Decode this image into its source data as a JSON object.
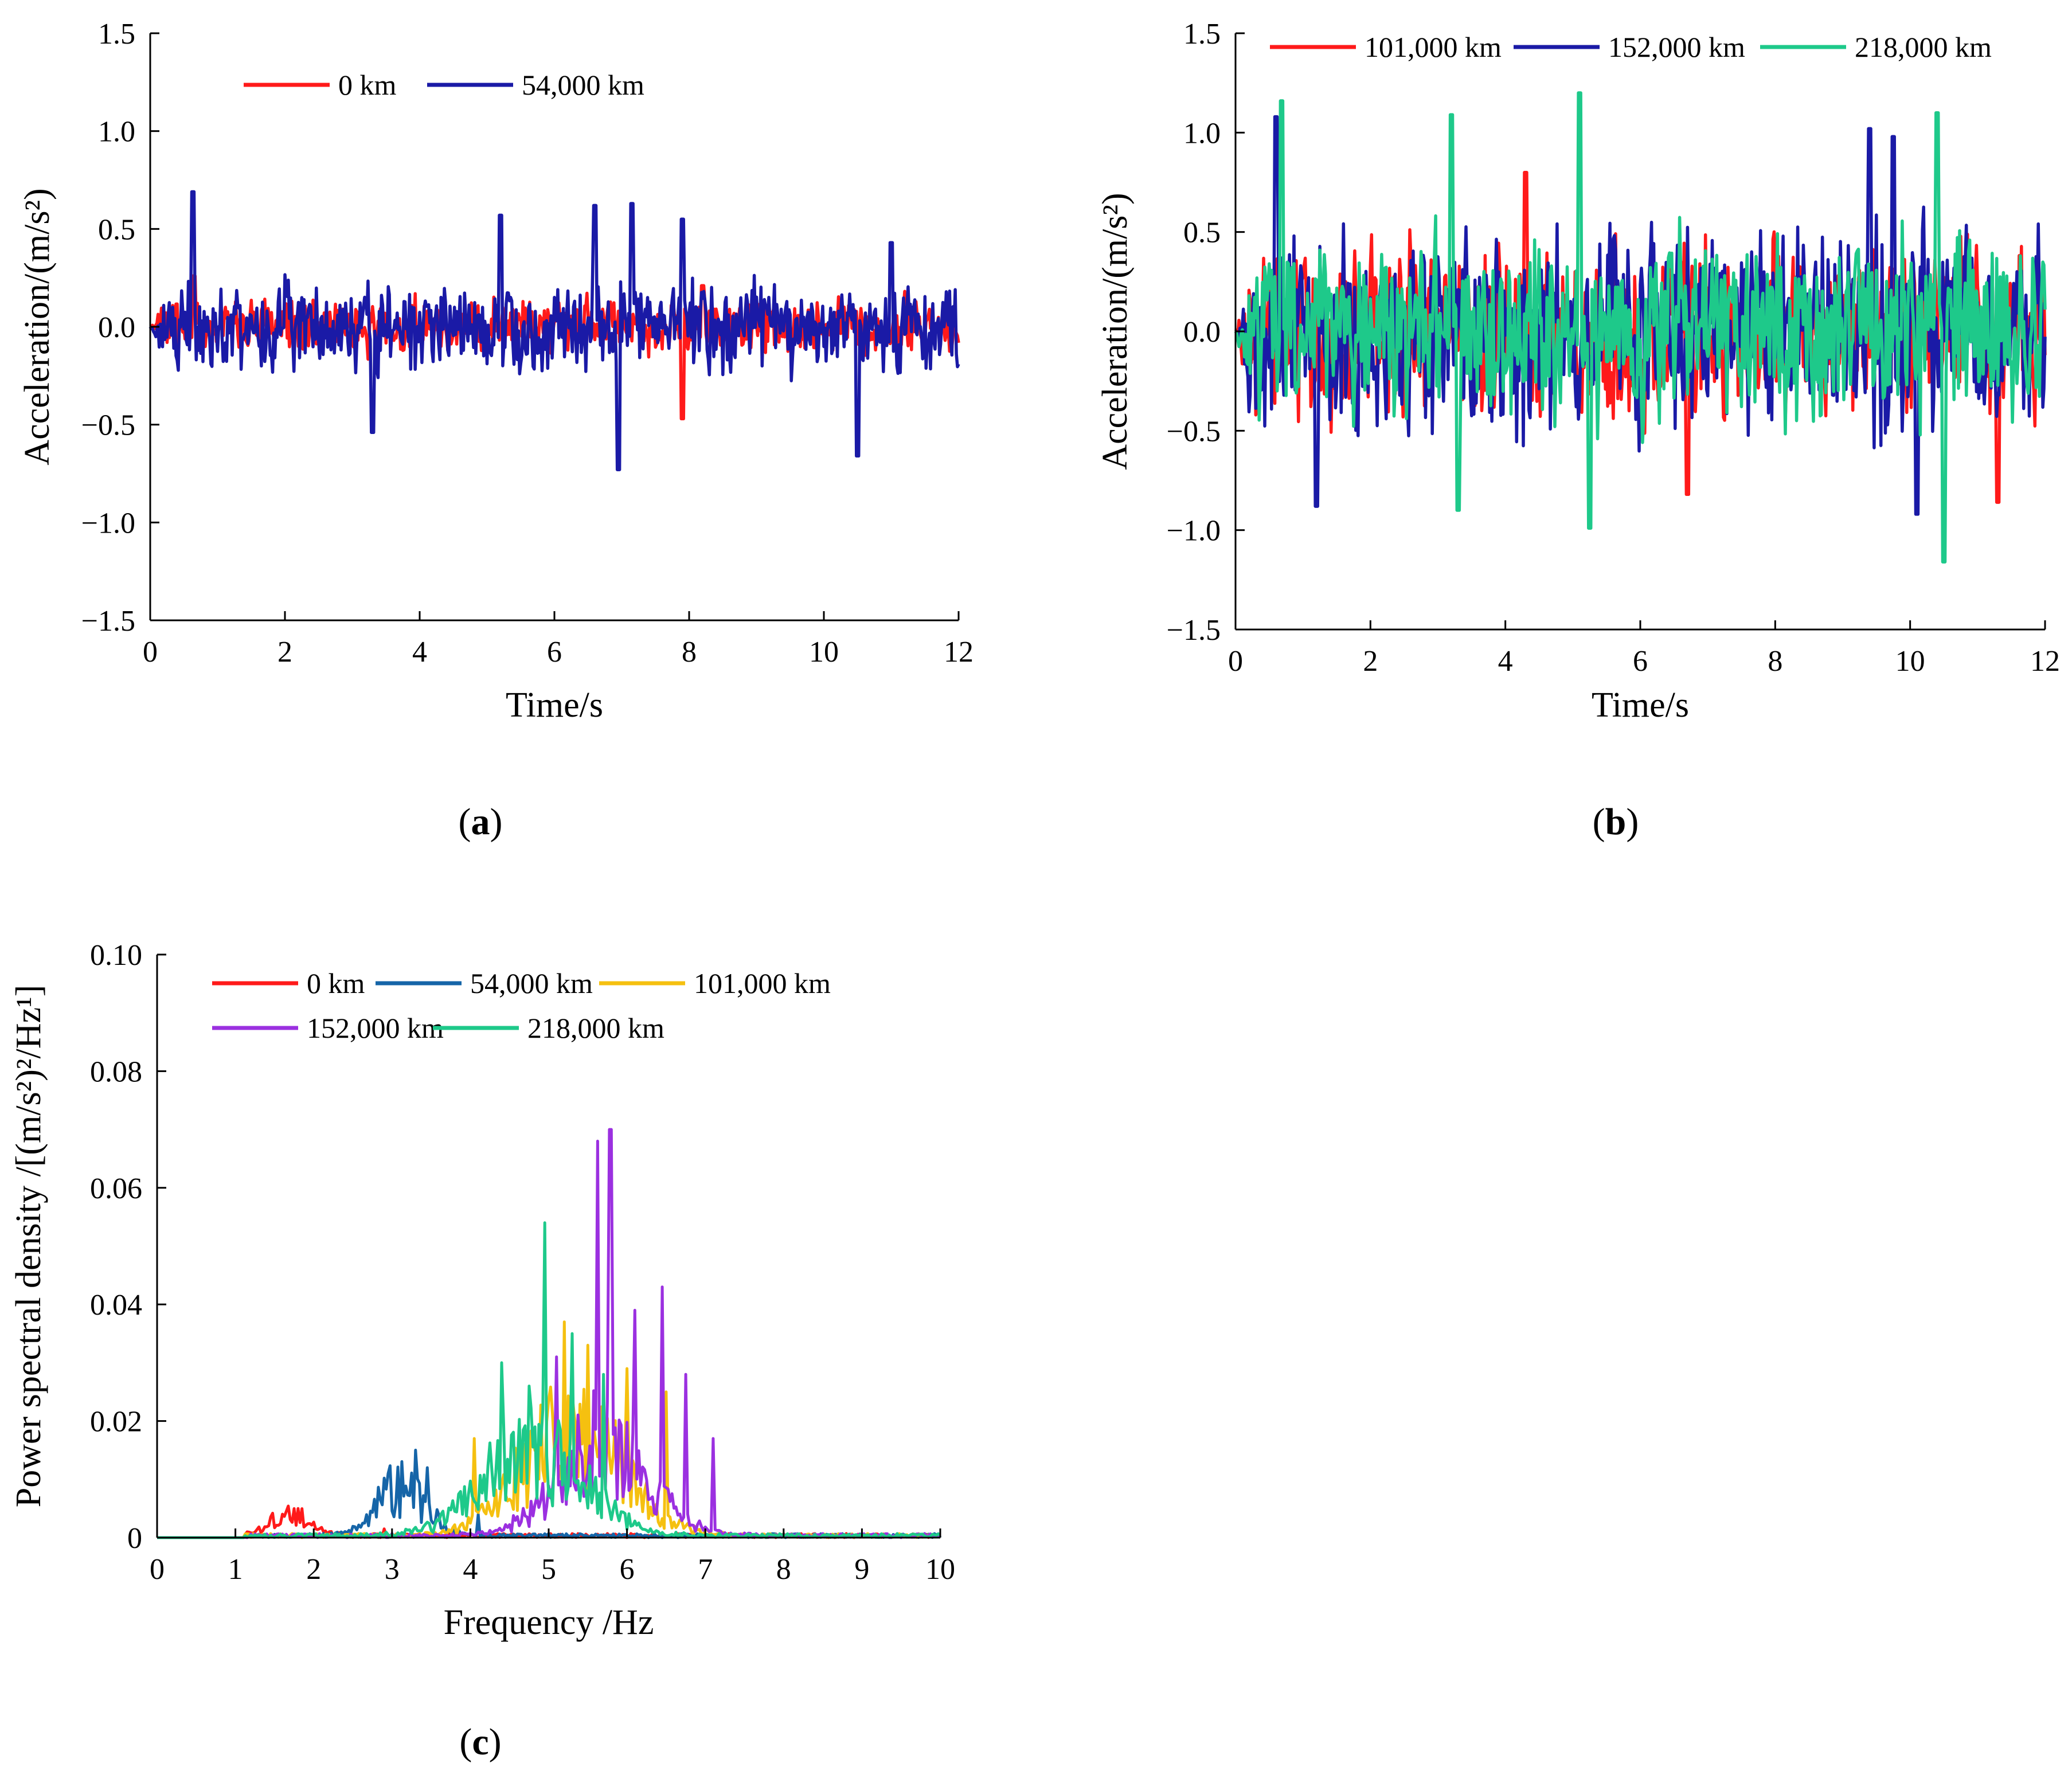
{
  "chart_data": [
    {
      "id": "a",
      "type": "line",
      "panel_label": "a",
      "xlabel": "Time/s",
      "ylabel": "Acceleration/(m/s²)",
      "xlim": [
        0,
        12
      ],
      "ylim": [
        -1.5,
        1.5
      ],
      "xticks": [
        0,
        2,
        4,
        6,
        8,
        10,
        12
      ],
      "yticks": [
        -1.5,
        -1.0,
        -0.5,
        0.0,
        0.5,
        1.0,
        1.5
      ],
      "ytick_labels": [
        "−1.5",
        "−1.0",
        "−0.5",
        "0.0",
        "0.5",
        "1.0",
        "1.5"
      ],
      "legend_position": "top",
      "series": [
        {
          "name": "0 km",
          "color": "#ff1a1a",
          "amplitude": 0.18,
          "peaks": [
            [
              0.65,
              0.26
            ],
            [
              7.9,
              -0.47
            ],
            [
              8.2,
              0.21
            ]
          ],
          "seed": 11
        },
        {
          "name": "54,000 km",
          "color": "#1a1aa6",
          "amplitude": 0.3,
          "peaks": [
            [
              0.63,
              0.69
            ],
            [
              3.3,
              -0.54
            ],
            [
              5.2,
              0.57
            ],
            [
              6.6,
              0.62
            ],
            [
              6.95,
              -0.73
            ],
            [
              7.15,
              0.63
            ],
            [
              7.9,
              0.55
            ],
            [
              10.5,
              -0.66
            ],
            [
              11.0,
              0.43
            ]
          ],
          "seed": 23
        }
      ]
    },
    {
      "id": "b",
      "type": "line",
      "panel_label": "b",
      "xlabel": "Time/s",
      "ylabel": "Acceleration/(m/s²)",
      "xlim": [
        0,
        12
      ],
      "ylim": [
        -1.5,
        1.5
      ],
      "xticks": [
        0,
        2,
        4,
        6,
        8,
        10,
        12
      ],
      "yticks": [
        -1.5,
        -1.0,
        -0.5,
        0.0,
        0.5,
        1.0,
        1.5
      ],
      "ytick_labels": [
        "−1.5",
        "−1.0",
        "−0.5",
        "0.0",
        "0.5",
        "1.0",
        "1.5"
      ],
      "legend_position": "top",
      "series": [
        {
          "name": "101,000 km",
          "color": "#ff1a1a",
          "amplitude": 0.6,
          "peaks": [
            [
              4.3,
              0.8
            ],
            [
              6.7,
              -0.82
            ],
            [
              11.3,
              -0.86
            ]
          ],
          "seed": 37
        },
        {
          "name": "152,000 km",
          "color": "#1a1aa6",
          "amplitude": 0.68,
          "peaks": [
            [
              0.6,
              1.08
            ],
            [
              1.2,
              -0.88
            ],
            [
              9.4,
              1.02
            ],
            [
              9.75,
              0.98
            ],
            [
              10.1,
              -0.92
            ]
          ],
          "seed": 53
        },
        {
          "name": "218,000 km",
          "color": "#1ec98a",
          "amplitude": 0.6,
          "peaks": [
            [
              0.68,
              1.16
            ],
            [
              3.2,
              1.09
            ],
            [
              3.3,
              -0.9
            ],
            [
              5.1,
              1.2
            ],
            [
              5.25,
              -0.99
            ],
            [
              10.4,
              1.1
            ],
            [
              10.5,
              -1.16
            ]
          ],
          "seed": 71
        }
      ]
    },
    {
      "id": "c",
      "type": "line",
      "panel_label": "c",
      "xlabel": "Frequency /Hz",
      "ylabel": "Power spectral density /[(m/s²)²/Hz¹]",
      "xlim": [
        0,
        10
      ],
      "ylim": [
        0,
        0.1
      ],
      "xticks": [
        0,
        1,
        2,
        3,
        4,
        5,
        6,
        7,
        8,
        9,
        10
      ],
      "yticks": [
        0,
        0.02,
        0.04,
        0.06,
        0.08,
        0.1
      ],
      "ytick_labels": [
        "0",
        "0.02",
        "0.04",
        "0.06",
        "0.08",
        "0.10"
      ],
      "legend_position": "top-left",
      "series": [
        {
          "name": "0 km",
          "color": "#ff1a1a",
          "peak_f": 1.7,
          "width": 0.35,
          "height": 0.004,
          "spikes": [
            [
              1.65,
              0.0045
            ],
            [
              1.8,
              0.005
            ],
            [
              2.9,
              0.0015
            ]
          ],
          "seed": 3
        },
        {
          "name": "54,000 km",
          "color": "#1565a8",
          "peak_f": 3.1,
          "width": 0.45,
          "height": 0.009,
          "spikes": [
            [
              2.95,
              0.011
            ],
            [
              3.3,
              0.015
            ],
            [
              3.45,
              0.012
            ],
            [
              4.1,
              0.004
            ]
          ],
          "seed": 5
        },
        {
          "name": "101,000 km",
          "color": "#f5c010",
          "peak_f": 5.3,
          "width": 0.9,
          "height": 0.02,
          "spikes": [
            [
              4.05,
              0.017
            ],
            [
              5.2,
              0.037
            ],
            [
              5.5,
              0.033
            ],
            [
              6.0,
              0.029
            ],
            [
              6.5,
              0.025
            ]
          ],
          "seed": 7
        },
        {
          "name": "152,000 km",
          "color": "#9b30e0",
          "peak_f": 5.7,
          "width": 0.8,
          "height": 0.018,
          "spikes": [
            [
              5.1,
              0.031
            ],
            [
              5.62,
              0.068
            ],
            [
              5.78,
              0.07
            ],
            [
              6.1,
              0.039
            ],
            [
              6.45,
              0.043
            ],
            [
              6.75,
              0.028
            ],
            [
              7.1,
              0.017
            ]
          ],
          "seed": 9
        },
        {
          "name": "218,000 km",
          "color": "#1ec98a",
          "peak_f": 4.8,
          "width": 0.9,
          "height": 0.016,
          "spikes": [
            [
              4.4,
              0.03
            ],
            [
              4.75,
              0.026
            ],
            [
              4.95,
              0.054
            ],
            [
              5.3,
              0.035
            ],
            [
              5.7,
              0.028
            ]
          ],
          "seed": 13
        }
      ]
    }
  ]
}
